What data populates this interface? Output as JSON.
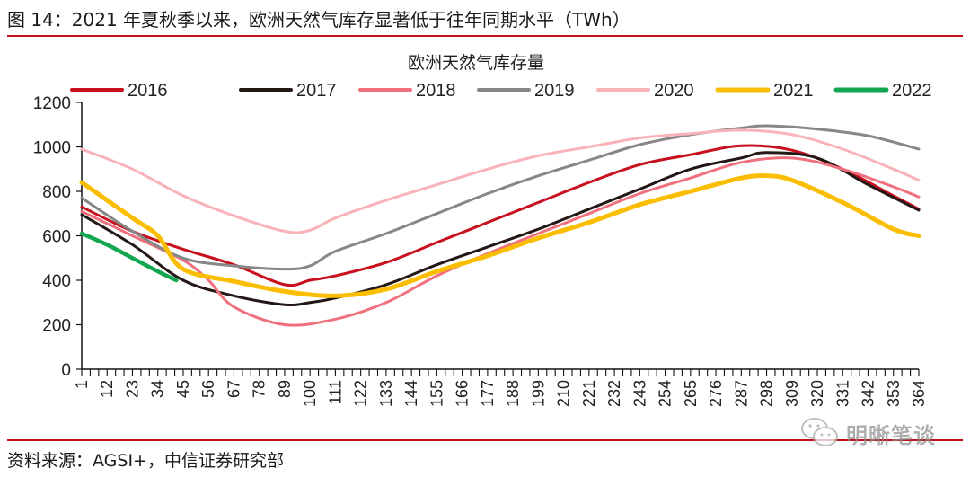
{
  "figure": {
    "title": "图 14：2021 年夏秋季以来，欧洲天然气库存显著低于往年同期水平（TWh）",
    "source": "资料来源：AGSI+，中信证券研究部",
    "watermark": {
      "icon": "wechat-icon",
      "text": "明晰笔谈"
    }
  },
  "chart_data": {
    "type": "line",
    "title": "欧洲天然气库存量",
    "xlabel": "",
    "ylabel": "",
    "unit": "TWh",
    "ylim": [
      0,
      1200
    ],
    "xlim": [
      1,
      364
    ],
    "yticks": [
      0,
      200,
      400,
      600,
      800,
      1000,
      1200
    ],
    "xticks": [
      1,
      12,
      23,
      34,
      45,
      56,
      67,
      78,
      89,
      100,
      111,
      122,
      133,
      144,
      155,
      166,
      177,
      188,
      199,
      210,
      221,
      232,
      243,
      254,
      265,
      276,
      287,
      298,
      309,
      320,
      331,
      342,
      353,
      364
    ],
    "grid": false,
    "legend": "top",
    "series": [
      {
        "name": "2016",
        "color": "#c8101e",
        "x": [
          1,
          23,
          45,
          67,
          89,
          100,
          111,
          133,
          155,
          177,
          199,
          221,
          243,
          265,
          287,
          309,
          331,
          353,
          364
        ],
        "values": [
          730,
          620,
          540,
          470,
          380,
          400,
          420,
          480,
          570,
          660,
          750,
          840,
          920,
          965,
          1005,
          985,
          900,
          780,
          720
        ]
      },
      {
        "name": "2017",
        "color": "#231815",
        "x": [
          1,
          23,
          45,
          67,
          89,
          100,
          111,
          133,
          155,
          177,
          199,
          221,
          243,
          265,
          287,
          298,
          320,
          342,
          364
        ],
        "values": [
          695,
          560,
          400,
          330,
          290,
          300,
          320,
          380,
          470,
          550,
          630,
          720,
          810,
          900,
          950,
          975,
          950,
          830,
          715
        ]
      },
      {
        "name": "2018",
        "color": "#f0707e",
        "x": [
          1,
          23,
          45,
          56,
          67,
          89,
          111,
          133,
          155,
          177,
          199,
          221,
          243,
          265,
          287,
          309,
          331,
          353,
          364
        ],
        "values": [
          710,
          600,
          490,
          400,
          280,
          200,
          225,
          300,
          420,
          520,
          610,
          700,
          790,
          860,
          930,
          950,
          900,
          820,
          775
        ]
      },
      {
        "name": "2019",
        "color": "#878787",
        "x": [
          1,
          23,
          45,
          67,
          89,
          100,
          111,
          133,
          155,
          177,
          199,
          221,
          243,
          265,
          287,
          298,
          320,
          342,
          364
        ],
        "values": [
          770,
          620,
          500,
          465,
          450,
          465,
          530,
          610,
          700,
          790,
          870,
          940,
          1010,
          1055,
          1085,
          1095,
          1080,
          1050,
          990
        ]
      },
      {
        "name": "2020",
        "color": "#f9b3b8",
        "x": [
          1,
          23,
          45,
          67,
          89,
          100,
          111,
          133,
          155,
          177,
          199,
          221,
          243,
          265,
          287,
          309,
          331,
          353,
          364
        ],
        "values": [
          990,
          900,
          780,
          690,
          620,
          625,
          680,
          760,
          830,
          900,
          960,
          1000,
          1040,
          1060,
          1075,
          1055,
          990,
          900,
          850
        ]
      },
      {
        "name": "2021",
        "color": "#fbbd00",
        "x": [
          1,
          23,
          34,
          45,
          67,
          89,
          111,
          133,
          155,
          177,
          199,
          221,
          243,
          265,
          287,
          298,
          309,
          331,
          353,
          364
        ],
        "values": [
          840,
          680,
          600,
          450,
          395,
          350,
          330,
          360,
          440,
          510,
          590,
          660,
          740,
          800,
          860,
          870,
          850,
          750,
          630,
          600
        ]
      },
      {
        "name": "2022",
        "color": "#12a650",
        "x": [
          1,
          12,
          23,
          34,
          42
        ],
        "values": [
          610,
          560,
          500,
          440,
          400
        ]
      }
    ]
  }
}
